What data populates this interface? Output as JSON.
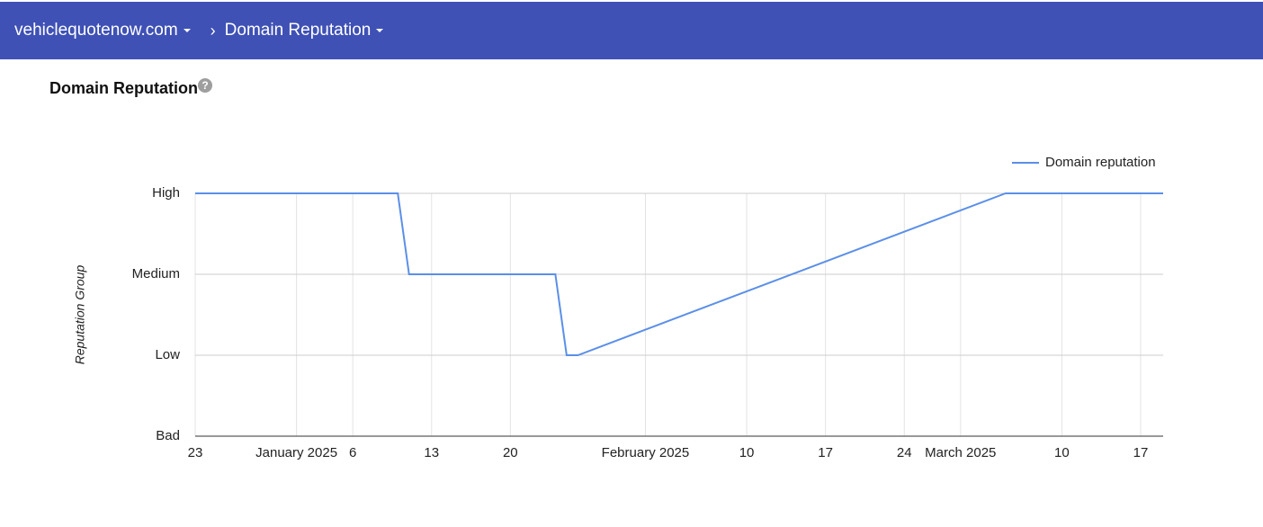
{
  "header": {
    "breadcrumbs": [
      "vehiclequotenow.com",
      "Domain Reputation"
    ]
  },
  "chart_data": {
    "type": "line",
    "title": "Domain Reputation",
    "y_label": "Reputation Group",
    "x": [
      "2024-12-23",
      "2025-01-10",
      "2025-01-11",
      "2025-01-24",
      "2025-01-25",
      "2025-01-26",
      "2025-03-05",
      "2025-03-19"
    ],
    "series": [
      {
        "name": "Domain reputation",
        "color": "#5b8fe8",
        "values": [
          3,
          3,
          2,
          2,
          1,
          1,
          3,
          3
        ]
      }
    ],
    "xlim": [
      "2024-12-23",
      "2025-03-19"
    ],
    "xticks": [
      {
        "value": "2024-12-23",
        "label": "23"
      },
      {
        "value": "2025-01-01",
        "label": "January 2025"
      },
      {
        "value": "2025-01-06",
        "label": "6"
      },
      {
        "value": "2025-01-13",
        "label": "13"
      },
      {
        "value": "2025-01-20",
        "label": "20"
      },
      {
        "value": "2025-02-01",
        "label": "February 2025"
      },
      {
        "value": "2025-02-10",
        "label": "10"
      },
      {
        "value": "2025-02-17",
        "label": "17"
      },
      {
        "value": "2025-02-24",
        "label": "24"
      },
      {
        "value": "2025-03-01",
        "label": "March 2025"
      },
      {
        "value": "2025-03-10",
        "label": "10"
      },
      {
        "value": "2025-03-17",
        "label": "17"
      }
    ],
    "ylim": [
      0,
      3
    ],
    "yticks": [
      {
        "value": 0,
        "label": "Bad"
      },
      {
        "value": 1,
        "label": "Low"
      },
      {
        "value": 2,
        "label": "Medium"
      },
      {
        "value": 3,
        "label": "High"
      }
    ],
    "grid": true,
    "legend": "top-right"
  }
}
